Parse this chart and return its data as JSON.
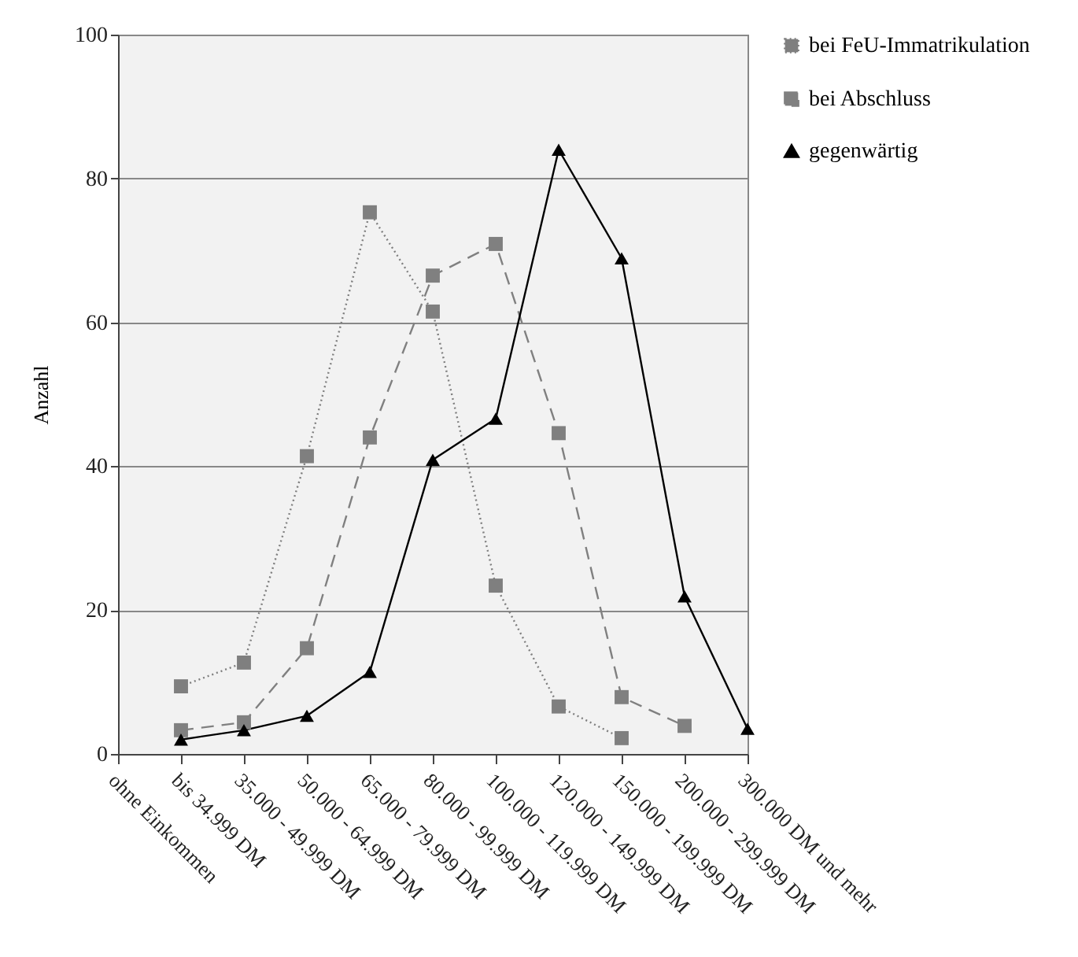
{
  "chart_data": {
    "type": "line",
    "ylabel": "Anzahl",
    "categories": [
      "ohne Einkommen",
      "bis 34.999 DM",
      "35.000 - 49.999 DM",
      "50.000 - 64.999 DM",
      "65.000 - 79.999 DM",
      "80.000 - 99.999 DM",
      "100.000 - 119.999 DM",
      "120.000 - 149.999 DM",
      "150.000 - 199.999 DM",
      "200.000 - 299.999 DM",
      "300.000 DM und mehr"
    ],
    "series": [
      {
        "name": "bei FeU-Immatrikulation",
        "color": "#7f7f7f",
        "marker": "square",
        "line_style": "dotted",
        "values": [
          null,
          9.4,
          12.7,
          41.4,
          75.3,
          61.5,
          23.4,
          6.6,
          2.2,
          null,
          null
        ]
      },
      {
        "name": "bei Abschluss",
        "color": "#808080",
        "marker": "square",
        "line_style": "dashed",
        "values": [
          null,
          3.3,
          4.4,
          14.7,
          44,
          66.5,
          70.9,
          44.6,
          7.9,
          3.9,
          null
        ]
      },
      {
        "name": "gegenwärtig",
        "color": "#000000",
        "marker": "triangle",
        "line_style": "solid",
        "values": [
          null,
          2,
          3.3,
          5.3,
          11.4,
          40.9,
          46.6,
          84,
          68.9,
          21.9,
          3.5
        ]
      }
    ],
    "ylim": [
      0,
      100
    ],
    "yticks": [
      0,
      20,
      40,
      60,
      80,
      100
    ],
    "grid": "y",
    "legend": "right"
  }
}
